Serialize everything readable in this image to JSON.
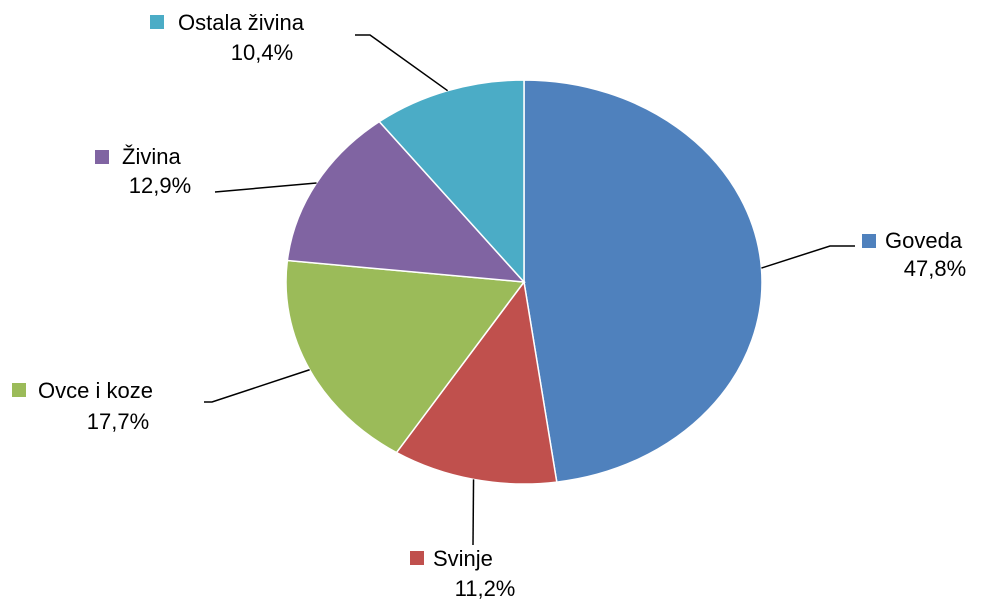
{
  "chart_data": {
    "type": "pie",
    "categories": [
      "Goveda",
      "Svinje",
      "Ovce i koze",
      "Živina",
      "Ostala živina"
    ],
    "values": [
      47.8,
      11.2,
      17.7,
      12.9,
      10.4
    ],
    "value_labels": [
      "47,8%",
      "11,2%",
      "17,7%",
      "12,9%",
      "10,4%"
    ],
    "colors": [
      "#4f81bd",
      "#c0504d",
      "#9bbb59",
      "#8064a2",
      "#4bacc6"
    ]
  }
}
